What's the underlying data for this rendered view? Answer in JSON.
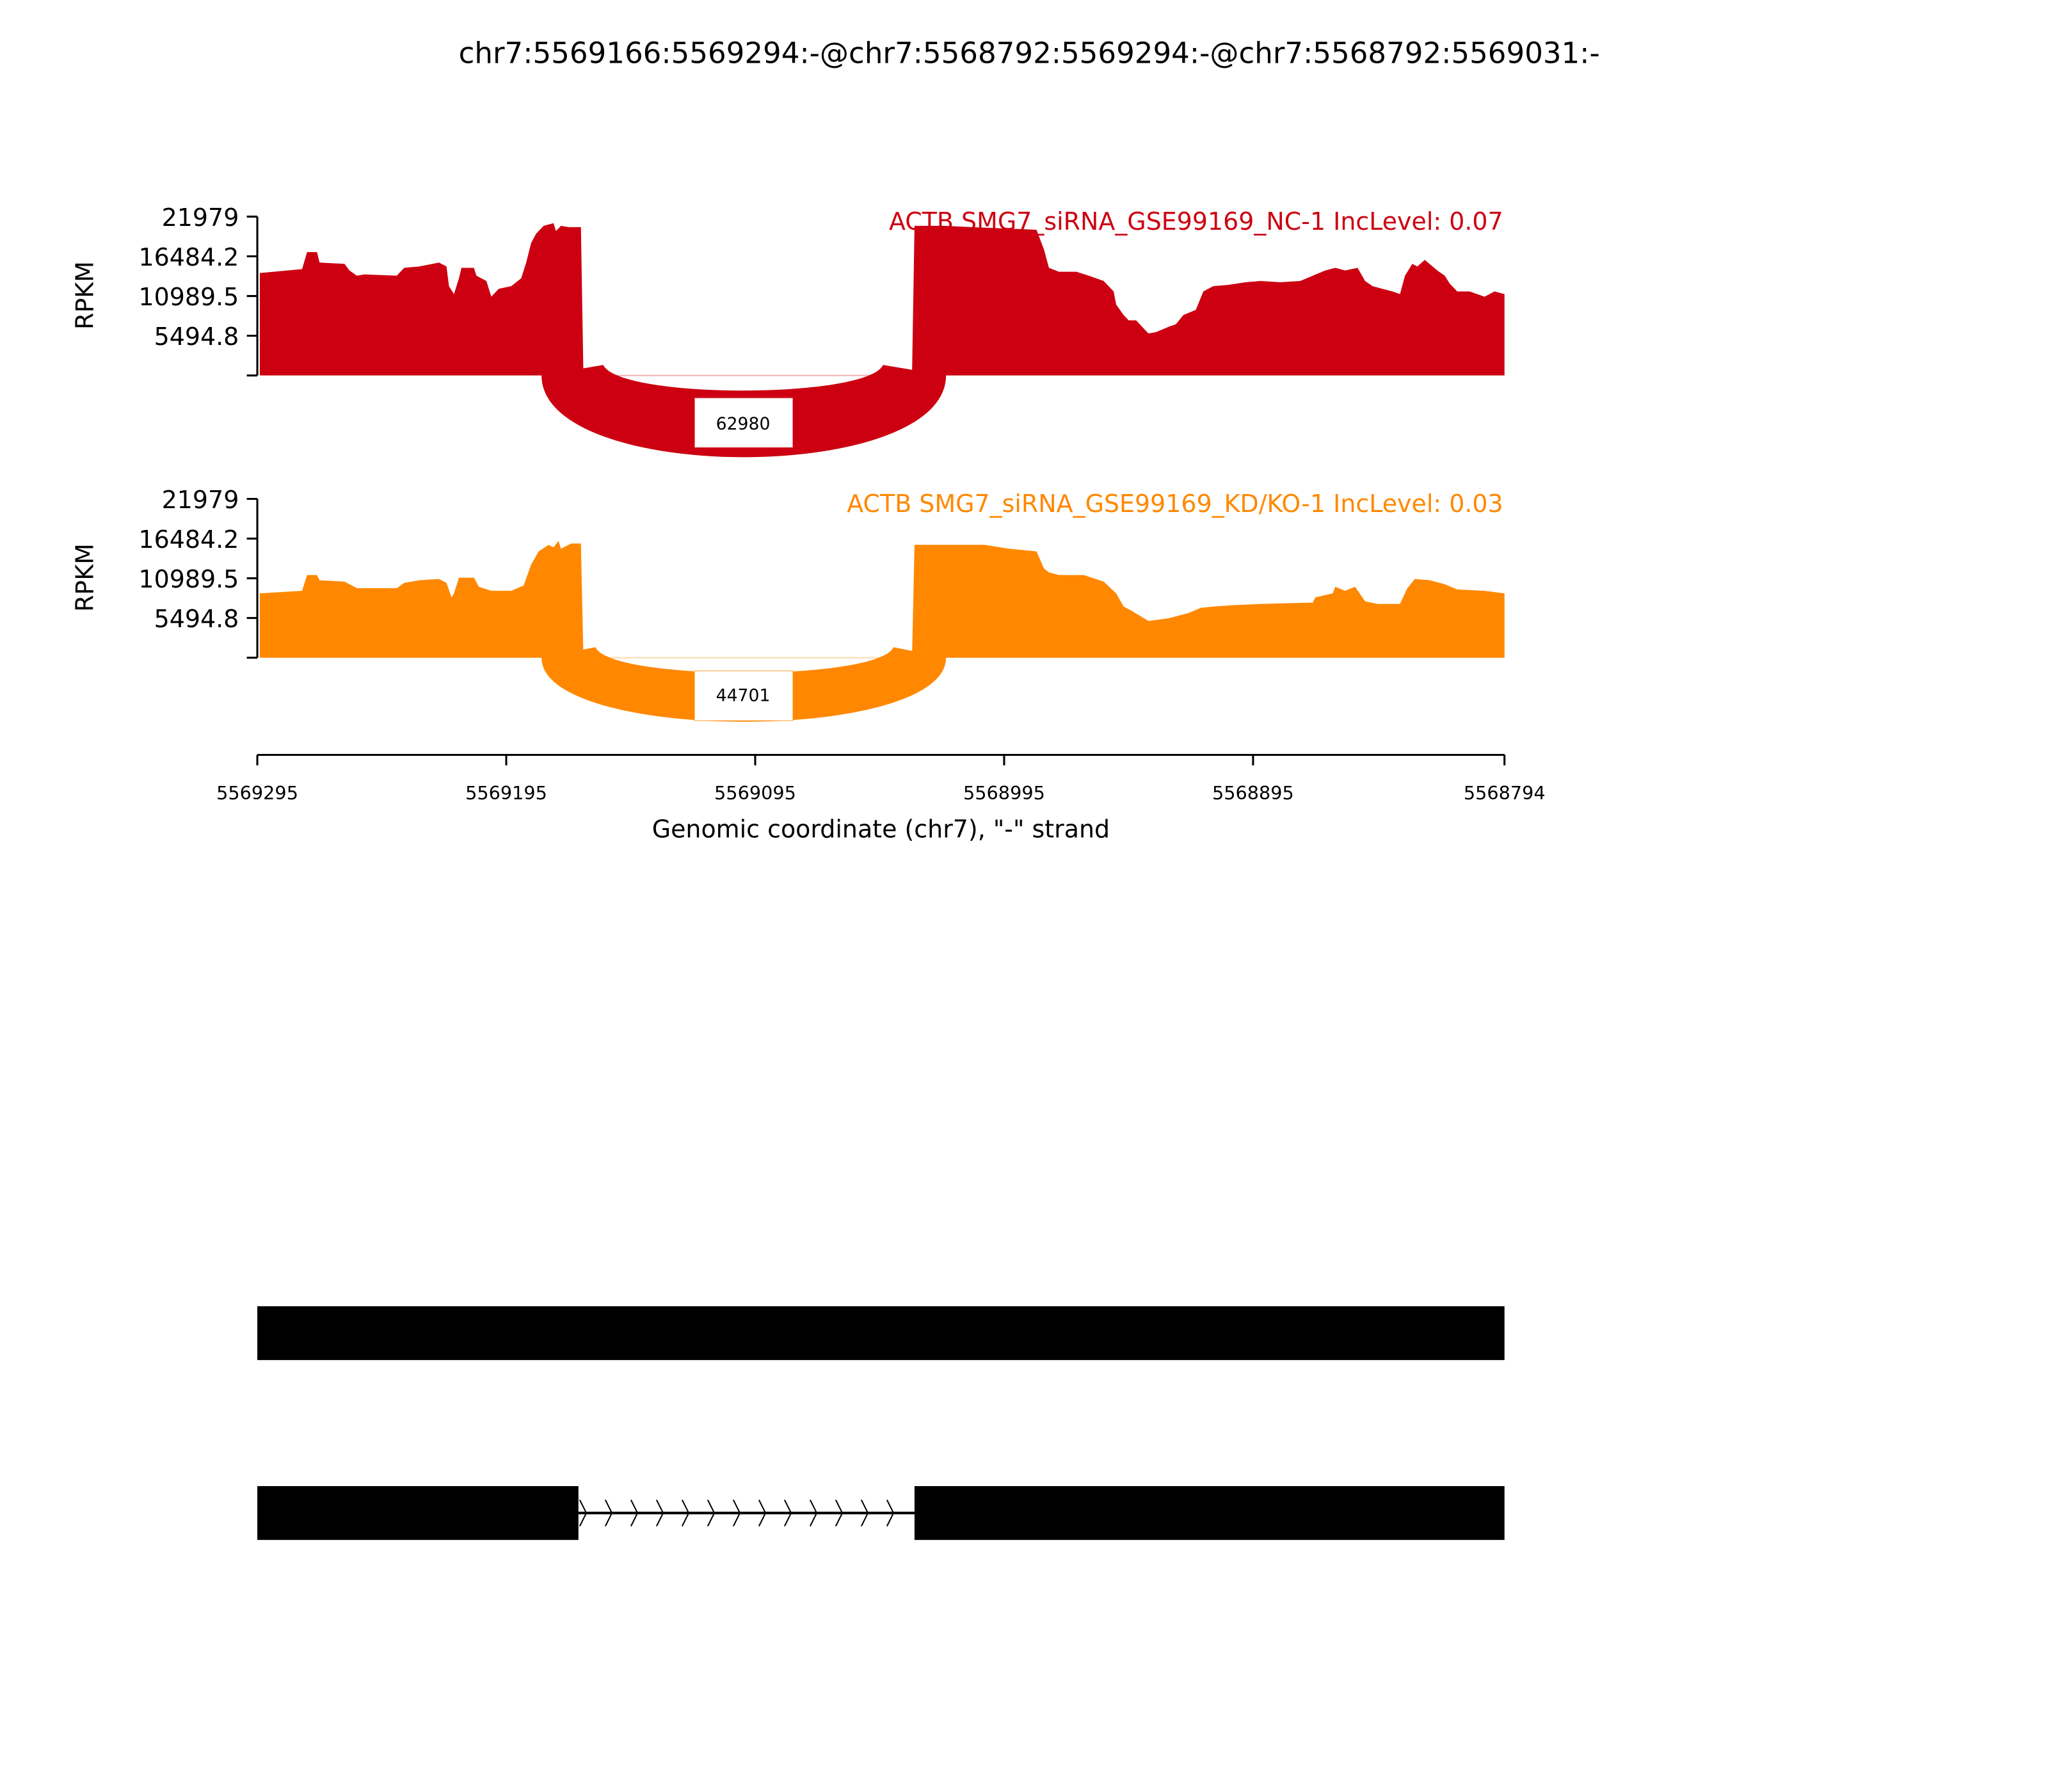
{
  "chart_data": {
    "type": "area",
    "title": "chr7:5569166:5569294:-@chr7:5568792:5569294:-@chr7:5568792:5569031:-",
    "xlabel": "Genomic coordinate (chr7), \"-\" strand",
    "xlim": [
      5569295,
      5568794
    ],
    "xticks": [
      "5569295",
      "5569195",
      "5569095",
      "5568995",
      "5568895",
      "5568794"
    ],
    "ylabel": "RPKM",
    "ylim": [
      0,
      21979
    ],
    "yticks": [
      "21979",
      "16484.2",
      "10989.5",
      "5494.8"
    ],
    "grid": false,
    "tracks": [
      {
        "name": "ACTB SMG7_siRNA_GSE99169_NC-1 IncLevel: 0.07",
        "color": "#CC0011",
        "junction": {
          "from": 5569165,
          "to": 5569031,
          "count": "62980"
        },
        "coverage": [
          [
            5569294,
            14165
          ],
          [
            5569277,
            14710
          ],
          [
            5569275,
            17070
          ],
          [
            5569271,
            17070
          ],
          [
            5569270,
            15618
          ],
          [
            5569260,
            15436
          ],
          [
            5569258,
            14528
          ],
          [
            5569255,
            13802
          ],
          [
            5569252,
            13983
          ],
          [
            5569239,
            13802
          ],
          [
            5569236,
            14891
          ],
          [
            5569230,
            15073
          ],
          [
            5569222,
            15618
          ],
          [
            5569219,
            15073
          ],
          [
            5569218,
            12349
          ],
          [
            5569216,
            11259
          ],
          [
            5569214,
            13438
          ],
          [
            5569213,
            14891
          ],
          [
            5569208,
            14891
          ],
          [
            5569207,
            13802
          ],
          [
            5569205,
            13438
          ],
          [
            5569203,
            13075
          ],
          [
            5569201,
            10896
          ],
          [
            5569199,
            11622
          ],
          [
            5569198,
            11986
          ],
          [
            5569193,
            12349
          ],
          [
            5569189,
            13438
          ],
          [
            5569187,
            15618
          ],
          [
            5569185,
            18342
          ],
          [
            5569183,
            19613
          ],
          [
            5569180,
            20702
          ],
          [
            5569176,
            21066
          ],
          [
            5569175,
            19976
          ],
          [
            5569173,
            20702
          ],
          [
            5569170,
            20521
          ],
          [
            5569165,
            20521
          ],
          [
            5569164,
            0
          ],
          [
            5569032,
            0
          ],
          [
            5569031,
            20702
          ],
          [
            5569019,
            20702
          ],
          [
            5569008,
            20521
          ],
          [
            5568982,
            20158
          ],
          [
            5568979,
            17434
          ],
          [
            5568977,
            14891
          ],
          [
            5568973,
            14346
          ],
          [
            5568966,
            14346
          ],
          [
            5568961,
            13802
          ],
          [
            5568955,
            13075
          ],
          [
            5568951,
            11622
          ],
          [
            5568950,
            9806
          ],
          [
            5568947,
            8354
          ],
          [
            5568945,
            7627
          ],
          [
            5568942,
            7627
          ],
          [
            5568939,
            6538
          ],
          [
            5568937,
            5811
          ],
          [
            5568934,
            5993
          ],
          [
            5568929,
            6719
          ],
          [
            5568926,
            7082
          ],
          [
            5568923,
            8354
          ],
          [
            5568918,
            9080
          ],
          [
            5568915,
            11622
          ],
          [
            5568911,
            12349
          ],
          [
            5568905,
            12530
          ],
          [
            5568898,
            12894
          ],
          [
            5568892,
            13075
          ],
          [
            5568884,
            12894
          ],
          [
            5568876,
            13075
          ],
          [
            5568871,
            13802
          ],
          [
            5568866,
            14528
          ],
          [
            5568862,
            14891
          ],
          [
            5568858,
            14528
          ],
          [
            5568853,
            14891
          ],
          [
            5568850,
            13075
          ],
          [
            5568847,
            12349
          ],
          [
            5568839,
            11622
          ],
          [
            5568836,
            11259
          ],
          [
            5568834,
            13802
          ],
          [
            5568831,
            15436
          ],
          [
            5568829,
            15073
          ],
          [
            5568826,
            15981
          ],
          [
            5568821,
            14528
          ],
          [
            5568818,
            13802
          ],
          [
            5568816,
            12712
          ],
          [
            5568813,
            11622
          ],
          [
            5568808,
            11622
          ],
          [
            5568802,
            10896
          ],
          [
            5568798,
            11622
          ],
          [
            5568794,
            11259
          ]
        ]
      },
      {
        "name": "ACTB SMG7_siRNA_GSE99169_KD/KO-1 IncLevel: 0.03",
        "color": "#FF8800",
        "junction": {
          "from": 5569165,
          "to": 5569031,
          "count": "44701"
        },
        "coverage": [
          [
            5569294,
            8898
          ],
          [
            5569277,
            9262
          ],
          [
            5569275,
            11441
          ],
          [
            5569271,
            11441
          ],
          [
            5569270,
            10714
          ],
          [
            5569260,
            10533
          ],
          [
            5569255,
            9625
          ],
          [
            5569239,
            9625
          ],
          [
            5569236,
            10351
          ],
          [
            5569230,
            10714
          ],
          [
            5569222,
            10896
          ],
          [
            5569219,
            10351
          ],
          [
            5569217,
            8354
          ],
          [
            5569216,
            8898
          ],
          [
            5569214,
            11078
          ],
          [
            5569208,
            11078
          ],
          [
            5569206,
            9806
          ],
          [
            5569201,
            9262
          ],
          [
            5569193,
            9262
          ],
          [
            5569188,
            9988
          ],
          [
            5569185,
            12894
          ],
          [
            5569182,
            14710
          ],
          [
            5569178,
            15618
          ],
          [
            5569176,
            15254
          ],
          [
            5569174,
            16162
          ],
          [
            5569173,
            15073
          ],
          [
            5569169,
            15799
          ],
          [
            5569165,
            15799
          ],
          [
            5569164,
            0
          ],
          [
            5569032,
            0
          ],
          [
            5569031,
            15618
          ],
          [
            5569003,
            15618
          ],
          [
            5568993,
            15073
          ],
          [
            5568982,
            14710
          ],
          [
            5568979,
            12349
          ],
          [
            5568977,
            11804
          ],
          [
            5568973,
            11441
          ],
          [
            5568963,
            11441
          ],
          [
            5568955,
            10533
          ],
          [
            5568950,
            8898
          ],
          [
            5568947,
            7082
          ],
          [
            5568944,
            6538
          ],
          [
            5568937,
            5085
          ],
          [
            5568929,
            5448
          ],
          [
            5568921,
            6174
          ],
          [
            5568916,
            6901
          ],
          [
            5568911,
            7082
          ],
          [
            5568903,
            7264
          ],
          [
            5568892,
            7446
          ],
          [
            5568871,
            7627
          ],
          [
            5568870,
            8354
          ],
          [
            5568863,
            8898
          ],
          [
            5568862,
            9806
          ],
          [
            5568858,
            9262
          ],
          [
            5568854,
            9806
          ],
          [
            5568850,
            7809
          ],
          [
            5568845,
            7446
          ],
          [
            5568836,
            7446
          ],
          [
            5568833,
            9625
          ],
          [
            5568830,
            10896
          ],
          [
            5568824,
            10714
          ],
          [
            5568818,
            10170
          ],
          [
            5568813,
            9443
          ],
          [
            5568802,
            9262
          ],
          [
            5568794,
            8898
          ]
        ]
      }
    ],
    "gene_model": {
      "isoforms": [
        {
          "exons": [
            [
              5569295,
              5568794
            ]
          ]
        },
        {
          "exons": [
            [
              5569295,
              5569166
            ],
            [
              5569031,
              5568794
            ]
          ],
          "intron_strand": ">"
        }
      ],
      "color": "#000000"
    }
  }
}
